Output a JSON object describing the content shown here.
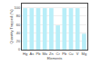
{
  "chart_data": {
    "type": "bar",
    "categories": [
      "Hg",
      "As",
      "Pb",
      "Mo",
      "Zn",
      "Cr",
      "Pb",
      "Cu",
      "V",
      "Mg"
    ],
    "values": [
      99,
      99,
      99,
      99,
      99,
      58,
      99,
      99,
      99,
      38
    ],
    "color": "#b8eef8",
    "xlabel": "Elements",
    "ylabel": "Quantity Trapped (%)",
    "ylim": [
      0,
      110
    ],
    "yticks": [
      0,
      20,
      40,
      60,
      80,
      100
    ],
    "grid": true
  }
}
